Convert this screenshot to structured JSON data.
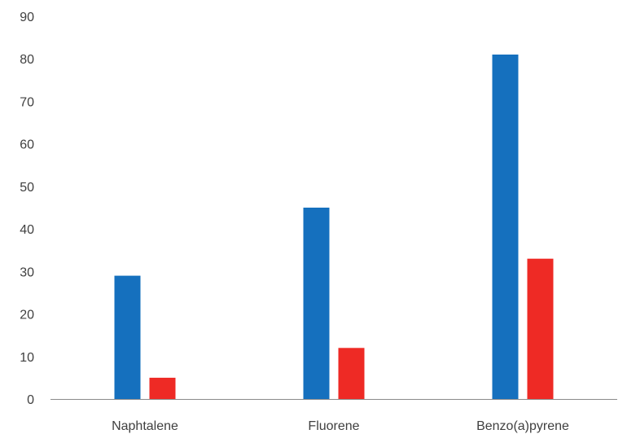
{
  "chart_data": {
    "type": "bar",
    "title": "",
    "xlabel": "",
    "ylabel": "",
    "categories": [
      "Naphtalene",
      "Fluorene",
      "Benzo(a)pyrene"
    ],
    "series": [
      {
        "values": [
          29,
          45,
          81
        ],
        "color": "#1570BE"
      },
      {
        "values": [
          5,
          12,
          33
        ],
        "color": "#EE2A25"
      }
    ],
    "ylim": [
      0,
      90
    ],
    "yticks": [
      0,
      10,
      20,
      30,
      40,
      50,
      60,
      70,
      80,
      90
    ],
    "grid": false,
    "legend": "none"
  }
}
